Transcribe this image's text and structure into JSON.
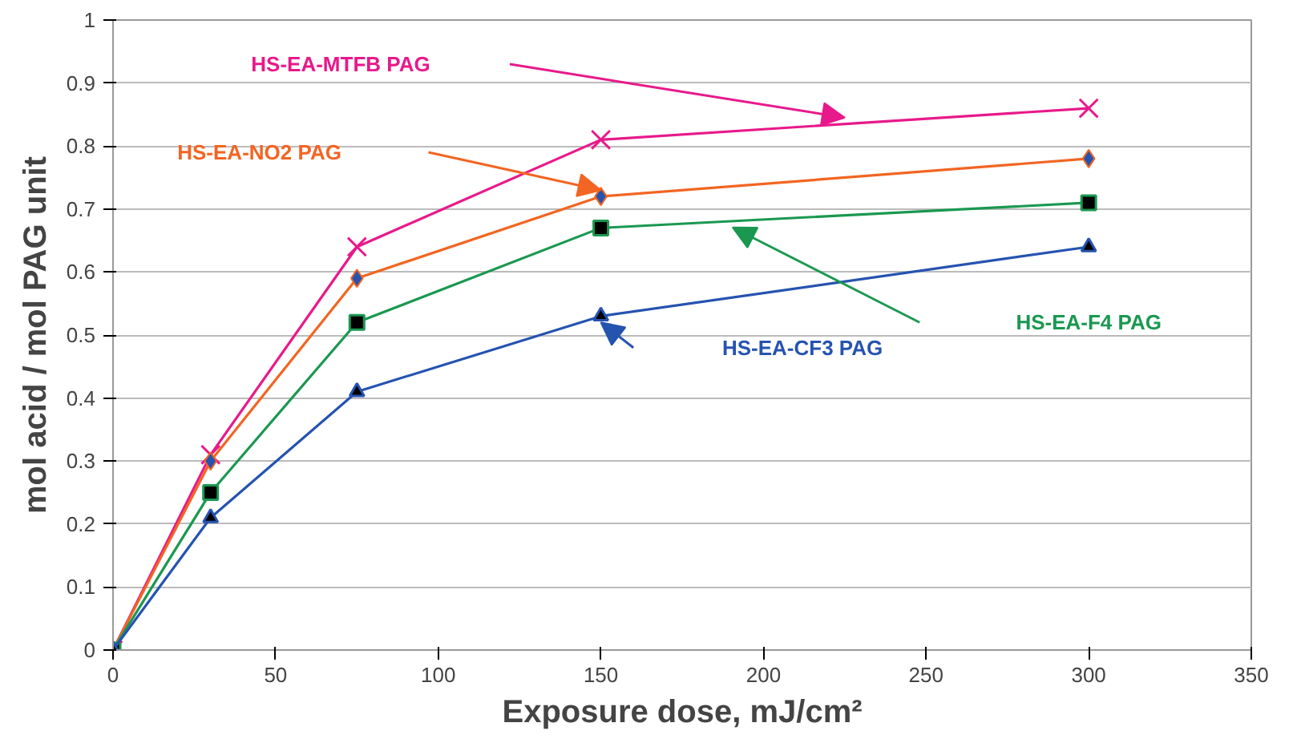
{
  "chart_data": {
    "type": "line",
    "xlabel": "Exposure dose, mJ/cm²",
    "ylabel": "mol acid / mol PAG unit",
    "x": [
      0,
      30,
      75,
      150,
      300
    ],
    "series": [
      {
        "name": "HS-EA-MTFB PAG",
        "color": "#e8198b",
        "marker": "cross",
        "values": [
          0,
          0.31,
          0.64,
          0.81,
          0.86
        ]
      },
      {
        "name": "HS-EA-NO2 PAG",
        "color": "#f26522",
        "marker": "diamond",
        "values": [
          0,
          0.3,
          0.59,
          0.72,
          0.78
        ]
      },
      {
        "name": "HS-EA-F4 PAG",
        "color": "#1a9850",
        "marker": "square",
        "values": [
          0,
          0.25,
          0.52,
          0.67,
          0.71
        ]
      },
      {
        "name": "HS-EA-CF3 PAG",
        "color": "#2553b0",
        "marker": "triangle",
        "values": [
          0,
          0.21,
          0.41,
          0.53,
          0.64
        ]
      }
    ],
    "xlim": [
      0,
      350
    ],
    "xticks": [
      0,
      50,
      100,
      150,
      200,
      250,
      300,
      350
    ],
    "ylim": [
      0,
      1
    ],
    "yticks": [
      0,
      0.1,
      0.2,
      0.3,
      0.4,
      0.5,
      0.6,
      0.7,
      0.8,
      0.9,
      1
    ],
    "grid": "y"
  }
}
